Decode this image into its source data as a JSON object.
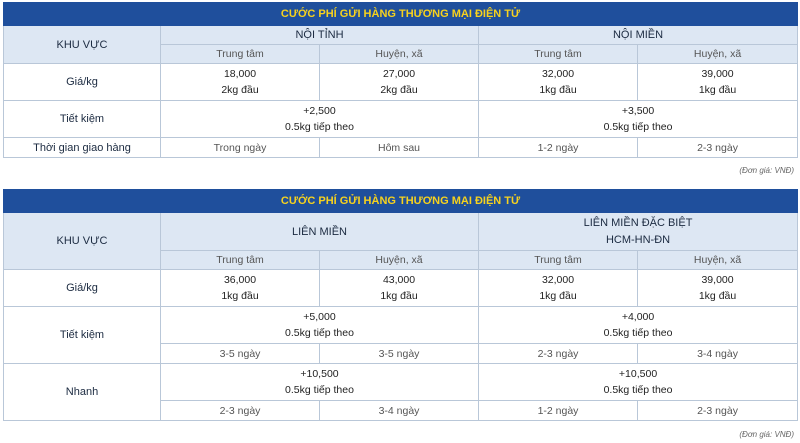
{
  "table1": {
    "title": "CƯỚC PHÍ GỬI HÀNG THƯƠNG MẠI ĐIỆN TỬ",
    "region_label": "KHU VỰC",
    "groups": [
      "NỘI TỈNH",
      "NỘI MIỀN"
    ],
    "subcols": [
      "Trung tâm",
      "Huyện, xã",
      "Trung tâm",
      "Huyện, xã"
    ],
    "price_label": "Giá/kg",
    "prices": [
      {
        "amount": "18,000",
        "unit": "2kg đầu"
      },
      {
        "amount": "27,000",
        "unit": "2kg đầu"
      },
      {
        "amount": "32,000",
        "unit": "1kg đầu"
      },
      {
        "amount": "39,000",
        "unit": "1kg đầu"
      }
    ],
    "saving_label": "Tiết kiệm",
    "saving": [
      {
        "amount": "+2,500",
        "unit": "0.5kg tiếp theo"
      },
      {
        "amount": "+3,500",
        "unit": "0.5kg tiếp theo"
      }
    ],
    "delivery_label": "Thời gian giao hàng",
    "delivery": [
      "Trong ngày",
      "Hôm sau",
      "1-2 ngày",
      "2-3 ngày"
    ],
    "note": "(Đơn giá: VNĐ)"
  },
  "table2": {
    "title": "CƯỚC PHÍ GỬI HÀNG THƯƠNG MẠI ĐIỆN TỬ",
    "region_label": "KHU VỰC",
    "group1": "LIÊN MIỀN",
    "group2_line1": "LIÊN MIỀN ĐẶC BIỆT",
    "group2_line2": "HCM-HN-ĐN",
    "subcols": [
      "Trung tâm",
      "Huyện, xã",
      "Trung tâm",
      "Huyện, xã"
    ],
    "price_label": "Giá/kg",
    "prices": [
      {
        "amount": "36,000",
        "unit": "1kg đầu"
      },
      {
        "amount": "43,000",
        "unit": "1kg đầu"
      },
      {
        "amount": "32,000",
        "unit": "1kg đầu"
      },
      {
        "amount": "39,000",
        "unit": "1kg đầu"
      }
    ],
    "saving_label": "Tiết kiệm",
    "saving": [
      {
        "amount": "+5,000",
        "unit": "0.5kg tiếp theo"
      },
      {
        "amount": "+4,000",
        "unit": "0.5kg tiếp theo"
      }
    ],
    "saving_days": [
      "3-5 ngày",
      "3-5 ngày",
      "2-3 ngày",
      "3-4 ngày"
    ],
    "fast_label": "Nhanh",
    "fast": [
      {
        "amount": "+10,500",
        "unit": "0.5kg tiếp theo"
      },
      {
        "amount": "+10,500",
        "unit": "0.5kg tiếp theo"
      }
    ],
    "fast_days": [
      "2-3 ngày",
      "3-4 ngày",
      "1-2 ngày",
      "2-3 ngày"
    ],
    "note": "(Đơn giá: VNĐ)"
  }
}
